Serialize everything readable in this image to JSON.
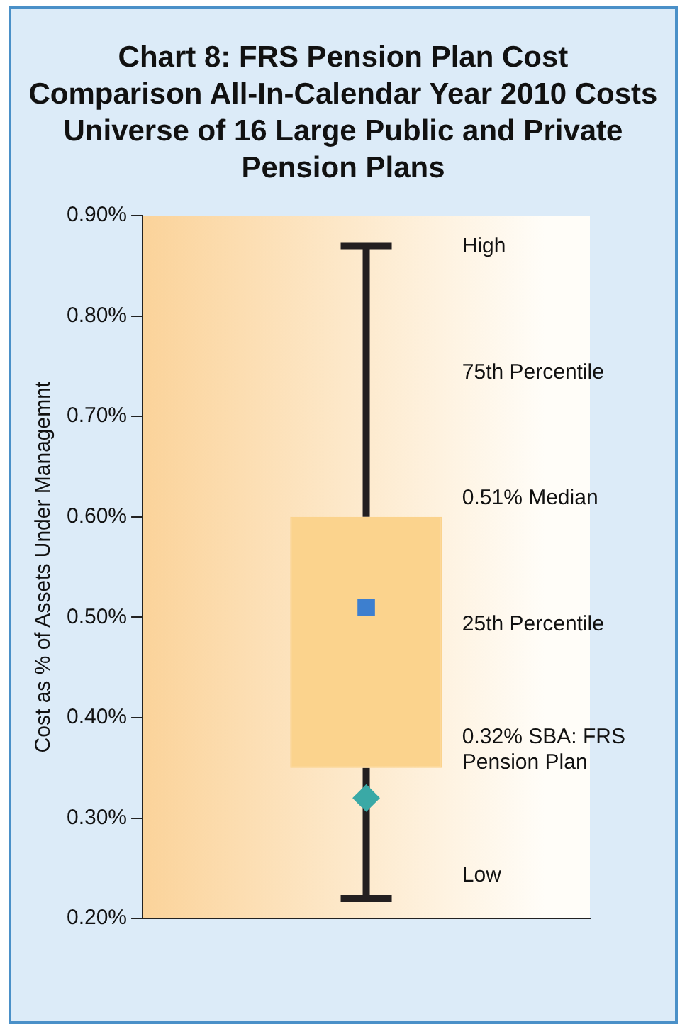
{
  "chart_data": {
    "type": "box",
    "title": "Chart 8: FRS Pension Plan Cost Comparison All-In-Calendar Year 2010 Costs Universe of 16 Large Public and Private Pension Plans",
    "ylabel": "Cost as % of Assets Under Managemnt",
    "categories": [
      null
    ],
    "series": [
      {
        "color": "#fbd38d",
        "boxes": [
          {
            "low": 0.22,
            "q1": 0.35,
            "median": 0.51,
            "q3": 0.6,
            "high": 0.87
          }
        ]
      },
      {
        "type": "scatter",
        "color": "#3aa9a6",
        "marker": "diamond",
        "values": [
          0.32
        ]
      }
    ],
    "ylim": [
      0.2,
      0.9
    ],
    "yticks": [
      {
        "value": 0.2,
        "label": "0.20%"
      },
      {
        "value": 0.3,
        "label": "0.30%"
      },
      {
        "value": 0.4,
        "label": "0.40%"
      },
      {
        "value": 0.5,
        "label": "0.50%"
      },
      {
        "value": 0.6,
        "label": "0.60%"
      },
      {
        "value": 0.7,
        "label": "0.70%"
      },
      {
        "value": 0.8,
        "label": "0.80%"
      },
      {
        "value": 0.9,
        "label": "0.90%"
      }
    ],
    "grid": false,
    "legend": false,
    "annotations": [
      "High",
      "75th Percentile",
      "0.51% Median",
      "25th Percentile",
      "0.32% SBA: FRS Pension Plan",
      "Low"
    ]
  }
}
